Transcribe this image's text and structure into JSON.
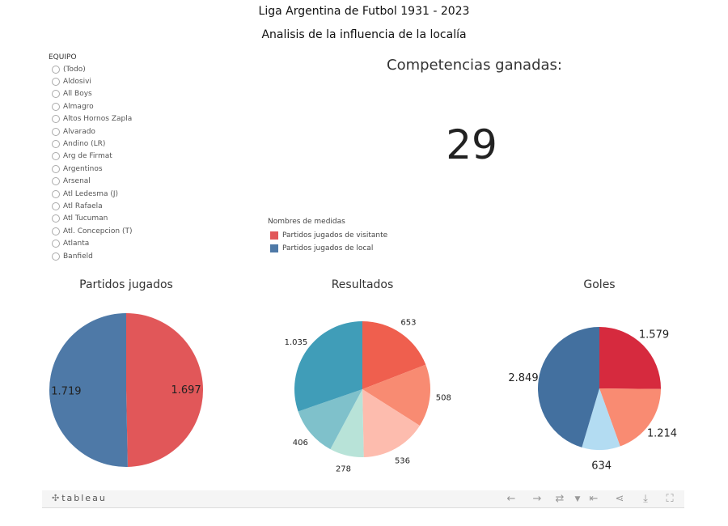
{
  "header": {
    "title": "Liga Argentina de Futbol 1931 - 2023",
    "subtitle": "Analisis de la influencia de la localía"
  },
  "filter": {
    "label": "EQUIPO",
    "items": [
      "(Todo)",
      "Aldosivi",
      "All Boys",
      "Almagro",
      "Altos Hornos Zapla",
      "Alvarado",
      "Andino (LR)",
      "Arg de Firmat",
      "Argentinos",
      "Arsenal",
      "Atl Ledesma (J)",
      "Atl Rafaela",
      "Atl Tucuman",
      "Atl. Concepcion (T)",
      "Atlanta",
      "Banfield"
    ]
  },
  "kpi": {
    "label": "Competencias ganadas:",
    "value": "29"
  },
  "legend": {
    "title": "Nombres de medidas",
    "items": [
      {
        "label": "Partidos jugados de visitante",
        "color": "#e15759"
      },
      {
        "label": "Partidos jugados de local",
        "color": "#4e79a7"
      }
    ]
  },
  "chart_data": [
    {
      "type": "pie",
      "title": "Partidos jugados",
      "slices": [
        {
          "value": 1697,
          "label": "1.697",
          "color": "#e15759"
        },
        {
          "value": 1719,
          "label": "1.719",
          "color": "#4e79a7"
        }
      ]
    },
    {
      "type": "pie",
      "title": "Resultados",
      "slices": [
        {
          "value": 653,
          "label": "653",
          "color": "#ef5f4e"
        },
        {
          "value": 508,
          "label": "508",
          "color": "#f88b72"
        },
        {
          "value": 536,
          "label": "536",
          "color": "#fdbcae"
        },
        {
          "value": 278,
          "label": "278",
          "color": "#b8e3d8"
        },
        {
          "value": 406,
          "label": "406",
          "color": "#7fc1cb"
        },
        {
          "value": 1035,
          "label": "1.035",
          "color": "#409db8"
        }
      ]
    },
    {
      "type": "pie",
      "title": "Goles",
      "slices": [
        {
          "value": 1579,
          "label": "1.579",
          "color": "#d62a3e"
        },
        {
          "value": 1214,
          "label": "1.214",
          "color": "#f98b72"
        },
        {
          "value": 634,
          "label": "634",
          "color": "#b3dcf2"
        },
        {
          "value": 2849,
          "label": "2.849",
          "color": "#43709f"
        }
      ]
    }
  ],
  "toolbar": {
    "logo_text": "tableau",
    "logo_mark": "✣",
    "icons": [
      "undo-icon",
      "redo-icon",
      "revert-icon",
      "dropdown-caret-icon",
      "reset-icon",
      "share-icon",
      "download-icon",
      "fullscreen-icon"
    ]
  }
}
